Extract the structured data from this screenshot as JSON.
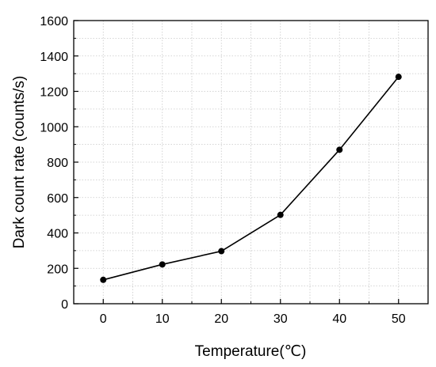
{
  "chart_data": {
    "type": "line",
    "title": "",
    "xlabel": "Temperature(℃)",
    "ylabel": "Dark count rate (counts/s)",
    "xlim": [
      -5,
      55
    ],
    "ylim": [
      0,
      1600
    ],
    "x_ticks": [
      0,
      10,
      20,
      30,
      40,
      50
    ],
    "y_ticks": [
      0,
      200,
      400,
      600,
      800,
      1000,
      1200,
      1400,
      1600
    ],
    "x_tick_labels": [
      "0",
      "10",
      "20",
      "30",
      "40",
      "50"
    ],
    "y_tick_labels": [
      "0",
      "200",
      "400",
      "600",
      "800",
      "1000",
      "1200",
      "1400",
      "1600"
    ],
    "grid": true,
    "legend": "none",
    "series": [
      {
        "x": [
          0,
          10,
          20,
          30,
          40,
          50
        ],
        "values": [
          135,
          222,
          297,
          502,
          870,
          1282
        ],
        "color": "#000000",
        "marker": "circle"
      }
    ]
  }
}
